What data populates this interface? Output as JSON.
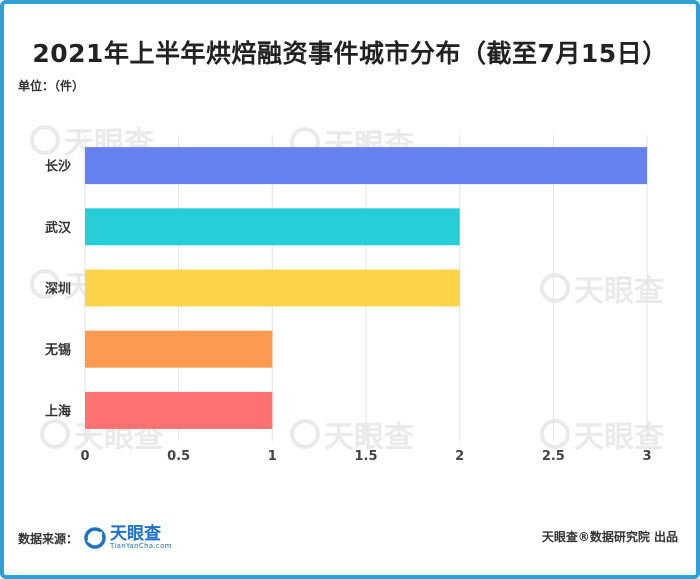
{
  "page": {
    "title": "2021年上半年烘焙融资事件城市分布（截至7月15日）",
    "unit_label": "单位：（件）",
    "source_label": "数据来源：",
    "brand_name": "天眼查",
    "brand_url": "TianYanCha.com",
    "credit": "天眼查®数据研究院 出品",
    "watermark_text": "天眼查"
  },
  "chart_data": {
    "type": "bar",
    "orientation": "horizontal",
    "title": "2021年上半年烘焙融资事件城市分布（截至7月15日）",
    "ylabel": "单位：（件）",
    "xlabel": "",
    "categories": [
      "长沙",
      "武汉",
      "深圳",
      "无锡",
      "上海"
    ],
    "values": [
      3,
      2,
      2,
      1,
      1
    ],
    "colors": [
      "#6582f0",
      "#27cdd8",
      "#fdd34a",
      "#fd9a4f",
      "#fd7171"
    ],
    "xlim": [
      0,
      3
    ],
    "xticks": [
      "0",
      "0.5",
      "1",
      "1.5",
      "2",
      "2.5",
      "3"
    ],
    "grid": true,
    "legend": "none"
  }
}
